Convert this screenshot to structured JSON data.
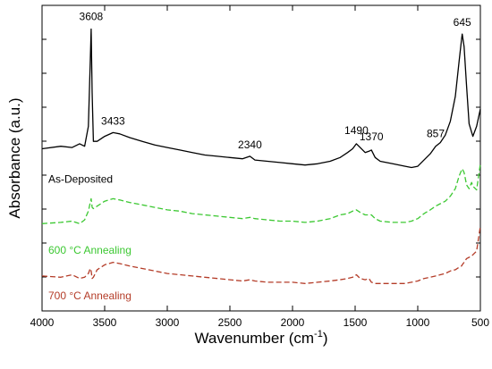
{
  "chart_data": {
    "type": "line",
    "xlabel": "Wavenumber (cm",
    "xlabel_sup": "-1",
    "xlabel_end": ")",
    "ylabel": "Absorbance (a.u.)",
    "xlim": [
      4000,
      500
    ],
    "x_ticks": [
      4000,
      3500,
      3000,
      2500,
      2000,
      1500,
      1000,
      500
    ],
    "x_tick_labels": [
      "4000",
      "3500",
      "3000",
      "2500",
      "2000",
      "1500",
      "1000",
      "500"
    ],
    "y_ticks_visible": false,
    "grid": false,
    "annotations": [
      {
        "text": "3608",
        "x": 3608
      },
      {
        "text": "3433",
        "x": 3433
      },
      {
        "text": "2340",
        "x": 2340
      },
      {
        "text": "1490",
        "x": 1490
      },
      {
        "text": "1370",
        "x": 1370
      },
      {
        "text": "857",
        "x": 857
      },
      {
        "text": "645",
        "x": 645
      }
    ],
    "series": [
      {
        "name": "As-Deposited",
        "color": "#000000",
        "style": "solid",
        "x": [
          4000,
          3850,
          3760,
          3700,
          3660,
          3630,
          3615,
          3608,
          3600,
          3590,
          3560,
          3500,
          3433,
          3380,
          3300,
          3200,
          3100,
          3000,
          2900,
          2800,
          2700,
          2600,
          2500,
          2400,
          2340,
          2300,
          2200,
          2100,
          2000,
          1900,
          1800,
          1700,
          1620,
          1560,
          1520,
          1490,
          1460,
          1420,
          1390,
          1370,
          1340,
          1300,
          1200,
          1100,
          1050,
          1000,
          950,
          900,
          857,
          820,
          780,
          740,
          700,
          670,
          650,
          645,
          630,
          610,
          590,
          560,
          530,
          500
        ],
        "values": [
          0.6,
          0.62,
          0.61,
          0.64,
          0.62,
          0.78,
          1.3,
          1.56,
          1.05,
          0.66,
          0.66,
          0.7,
          0.73,
          0.72,
          0.69,
          0.66,
          0.63,
          0.61,
          0.59,
          0.57,
          0.55,
          0.54,
          0.53,
          0.52,
          0.54,
          0.51,
          0.5,
          0.49,
          0.48,
          0.47,
          0.48,
          0.5,
          0.53,
          0.57,
          0.6,
          0.64,
          0.61,
          0.57,
          0.58,
          0.59,
          0.53,
          0.5,
          0.48,
          0.46,
          0.45,
          0.46,
          0.51,
          0.56,
          0.62,
          0.65,
          0.71,
          0.82,
          1.02,
          1.3,
          1.48,
          1.52,
          1.42,
          1.1,
          0.8,
          0.7,
          0.78,
          0.92
        ]
      },
      {
        "name": "600 °C Annealing",
        "color": "#3cc832",
        "style": "dashed",
        "x": [
          4000,
          3850,
          3760,
          3700,
          3660,
          3630,
          3615,
          3608,
          3600,
          3590,
          3560,
          3500,
          3433,
          3380,
          3300,
          3200,
          3100,
          3000,
          2900,
          2800,
          2700,
          2600,
          2500,
          2400,
          2340,
          2300,
          2200,
          2100,
          2000,
          1900,
          1800,
          1700,
          1620,
          1560,
          1520,
          1490,
          1460,
          1420,
          1390,
          1370,
          1340,
          1300,
          1200,
          1100,
          1050,
          1000,
          950,
          900,
          857,
          820,
          780,
          740,
          700,
          670,
          650,
          645,
          630,
          610,
          590,
          570,
          560,
          530,
          500
        ],
        "values": [
          0.0,
          0.01,
          0.02,
          0.0,
          0.03,
          0.1,
          0.17,
          0.2,
          0.13,
          0.12,
          0.14,
          0.18,
          0.2,
          0.19,
          0.17,
          0.15,
          0.13,
          0.11,
          0.1,
          0.08,
          0.07,
          0.06,
          0.05,
          0.04,
          0.05,
          0.04,
          0.03,
          0.02,
          0.02,
          0.01,
          0.02,
          0.04,
          0.07,
          0.08,
          0.1,
          0.11,
          0.09,
          0.07,
          0.07,
          0.07,
          0.04,
          0.02,
          0.01,
          0.01,
          0.02,
          0.04,
          0.08,
          0.11,
          0.14,
          0.16,
          0.18,
          0.22,
          0.28,
          0.38,
          0.43,
          0.44,
          0.41,
          0.31,
          0.28,
          0.33,
          0.3,
          0.27,
          0.48
        ]
      },
      {
        "name": "700 °C Annealing",
        "color": "#b43c28",
        "style": "dashed",
        "x": [
          4000,
          3850,
          3760,
          3700,
          3660,
          3630,
          3615,
          3608,
          3600,
          3590,
          3560,
          3500,
          3433,
          3380,
          3300,
          3200,
          3100,
          3000,
          2900,
          2800,
          2700,
          2600,
          2500,
          2400,
          2340,
          2300,
          2200,
          2100,
          2000,
          1900,
          1800,
          1700,
          1620,
          1560,
          1520,
          1490,
          1460,
          1420,
          1390,
          1370,
          1340,
          1300,
          1200,
          1100,
          1050,
          1000,
          950,
          900,
          857,
          820,
          780,
          740,
          700,
          670,
          650,
          645,
          630,
          610,
          590,
          570,
          560,
          530,
          500
        ],
        "values": [
          -0.42,
          -0.43,
          -0.41,
          -0.44,
          -0.43,
          -0.4,
          -0.36,
          -0.38,
          -0.44,
          -0.43,
          -0.37,
          -0.33,
          -0.31,
          -0.32,
          -0.34,
          -0.36,
          -0.38,
          -0.4,
          -0.41,
          -0.42,
          -0.43,
          -0.44,
          -0.45,
          -0.46,
          -0.45,
          -0.46,
          -0.47,
          -0.47,
          -0.47,
          -0.48,
          -0.47,
          -0.46,
          -0.45,
          -0.44,
          -0.43,
          -0.41,
          -0.44,
          -0.45,
          -0.44,
          -0.47,
          -0.48,
          -0.48,
          -0.48,
          -0.48,
          -0.47,
          -0.46,
          -0.44,
          -0.43,
          -0.42,
          -0.41,
          -0.4,
          -0.38,
          -0.37,
          -0.35,
          -0.34,
          -0.33,
          -0.31,
          -0.28,
          -0.27,
          -0.26,
          -0.25,
          -0.22,
          -0.02
        ]
      }
    ]
  }
}
